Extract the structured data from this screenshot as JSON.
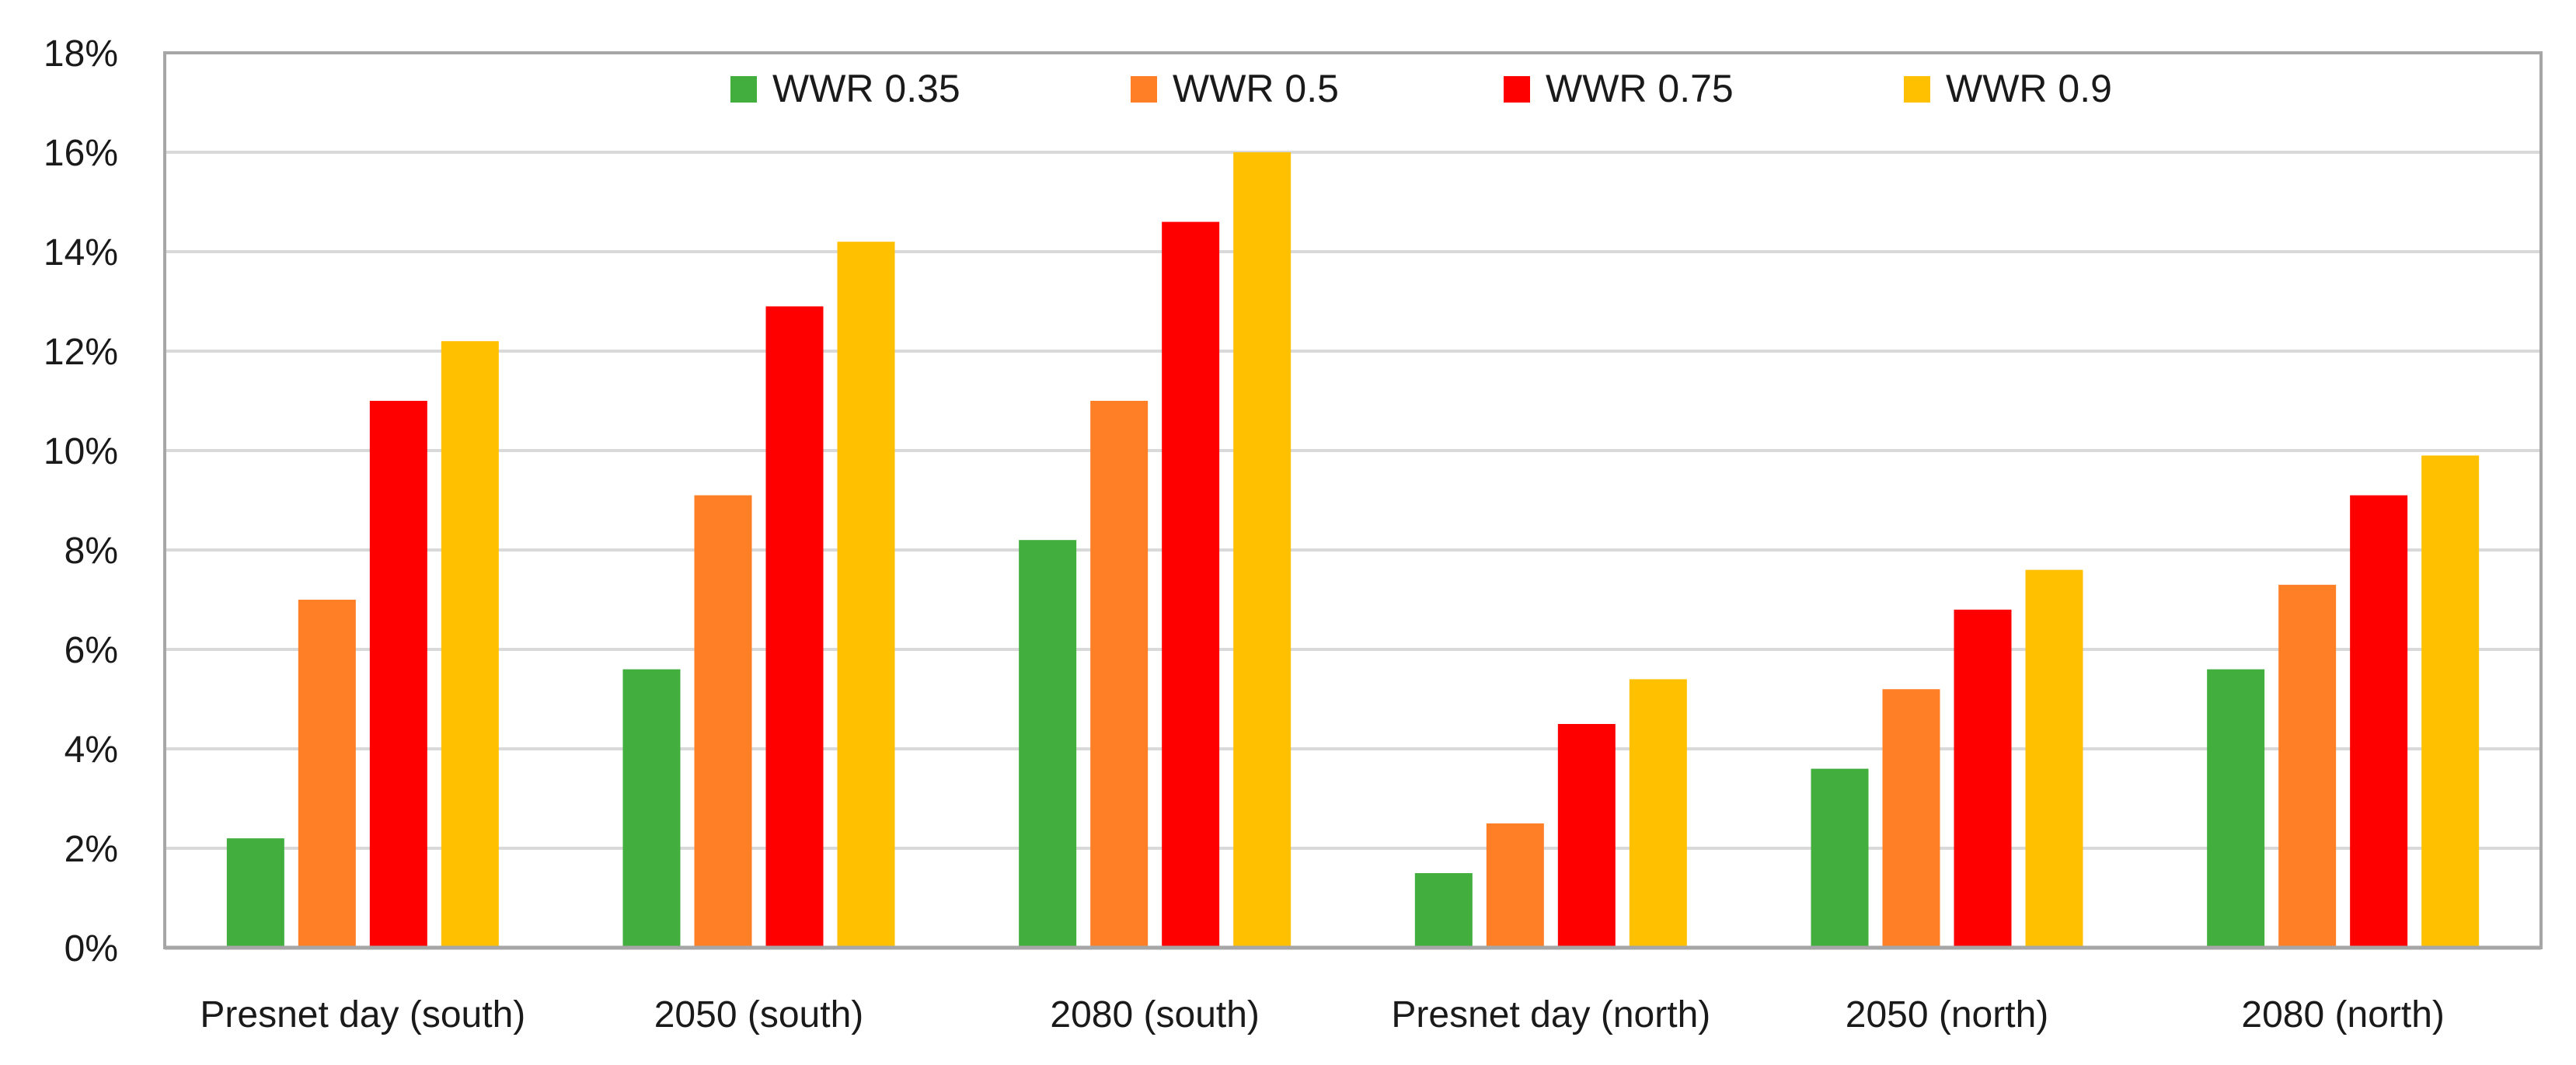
{
  "chart_data": {
    "type": "bar",
    "title": "",
    "xlabel": "",
    "ylabel": "",
    "ylim": [
      0,
      18
    ],
    "ytick_step": 2,
    "ytick_suffix": "%",
    "grid": true,
    "legend_position": "top",
    "categories": [
      "Presnet day (south)",
      "2050 (south)",
      "2080 (south)",
      "Presnet day (north)",
      "2050 (north)",
      "2080 (north)"
    ],
    "series": [
      {
        "name": "WWR 0.35",
        "color": "#41ae3d",
        "values": [
          2.2,
          5.6,
          8.2,
          1.5,
          3.6,
          5.6
        ]
      },
      {
        "name": "WWR 0.5",
        "color": "#ff7f27",
        "values": [
          7.0,
          9.1,
          11.0,
          2.5,
          5.2,
          7.3
        ]
      },
      {
        "name": "WWR 0.75",
        "color": "#ff0000",
        "values": [
          11.0,
          12.9,
          14.6,
          4.5,
          6.8,
          9.1
        ]
      },
      {
        "name": "WWR 0.9",
        "color": "#ffc000",
        "values": [
          12.2,
          14.2,
          16.0,
          5.4,
          7.6,
          9.9
        ]
      }
    ],
    "colors": {
      "grid": "#d9d9d9",
      "axis": "#a6a6a6",
      "text": "#1a1a1a"
    }
  }
}
